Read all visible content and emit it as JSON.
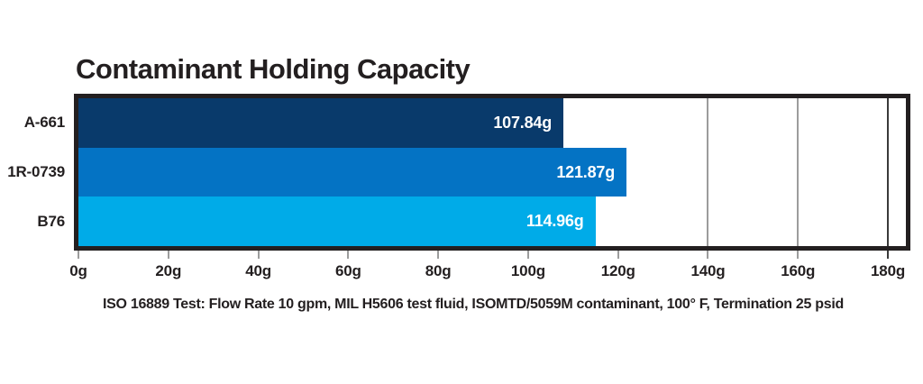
{
  "chart_data": {
    "type": "bar",
    "orientation": "horizontal",
    "title": "Contaminant Holding Capacity",
    "categories": [
      "A-661",
      "1R-0739",
      "B76"
    ],
    "values": [
      107.84,
      121.87,
      114.96
    ],
    "value_labels": [
      "107.84g",
      "121.87g",
      "114.96g"
    ],
    "bar_colors": [
      "#093a6b",
      "#0473c4",
      "#00abe8"
    ],
    "xlabel": "",
    "ylabel": "",
    "xlim": [
      0,
      184
    ],
    "x_ticks": [
      {
        "value": 0,
        "label": "0g",
        "color": "#9c9c9c"
      },
      {
        "value": 20,
        "label": "20g",
        "color": "#9c9c9c"
      },
      {
        "value": 40,
        "label": "40g",
        "color": "#9c9c9c"
      },
      {
        "value": 60,
        "label": "60g",
        "color": "#9c9c9c"
      },
      {
        "value": 80,
        "label": "80g",
        "color": "#9c9c9c"
      },
      {
        "value": 100,
        "label": "100g",
        "color": "#9c9c9c"
      },
      {
        "value": 120,
        "label": "120g",
        "color": "#9c9c9c"
      },
      {
        "value": 140,
        "label": "140g",
        "color": "#9c9c9c"
      },
      {
        "value": 160,
        "label": "160g",
        "color": "#9c9c9c"
      },
      {
        "value": 180,
        "label": "180g",
        "color": "#3a3a3a"
      }
    ],
    "gridlines": [
      {
        "value": 140,
        "color": "#9c9c9c"
      },
      {
        "value": 160,
        "color": "#9c9c9c"
      },
      {
        "value": 180,
        "color": "#3a3a3a"
      }
    ],
    "legend": "none",
    "annotation": "ISO 16889 Test: Flow Rate 10 gpm, MIL H5606 test fluid, ISOMTD/5059M contaminant, 100° F, Termination 25 psid"
  },
  "footnote": "ISO 16889 Test: Flow Rate 10 gpm, MIL H5606 test fluid, ISOMTD/5059M contaminant, 100° F, Termination 25 psid",
  "colors": {
    "text": "#231f20",
    "frame_border": "#231f20",
    "bar_value_text": "#ffffff",
    "background": "#ffffff"
  }
}
